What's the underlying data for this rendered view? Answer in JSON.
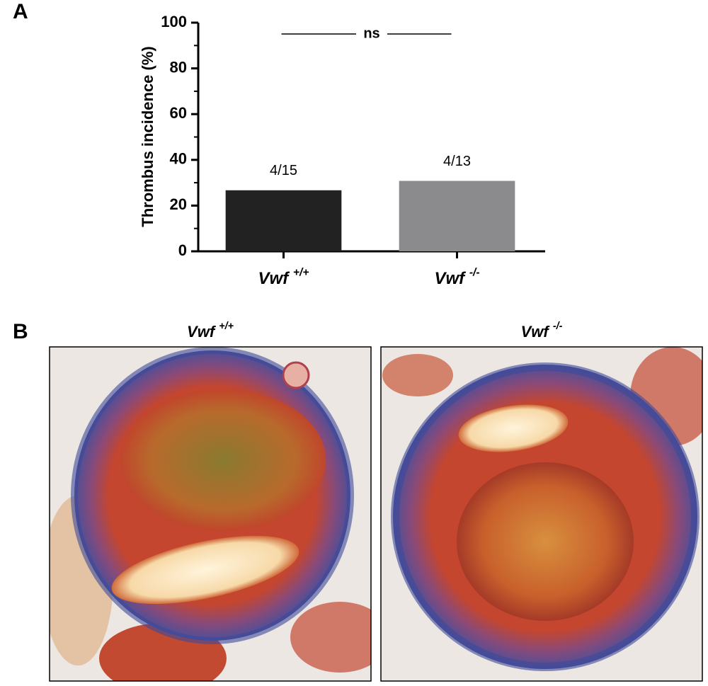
{
  "panel_labels": [
    "A",
    "B"
  ],
  "chart_data": {
    "type": "bar",
    "y_label": "Thrombus incidence (%)",
    "categories": [
      "Vwf +/+",
      "Vwf -/-"
    ],
    "series": [
      {
        "name": null,
        "colors": [
          "#222222",
          "#8b8b8e"
        ],
        "values": [
          26.7,
          30.8
        ],
        "value_labels": [
          "4/15",
          "4/13"
        ]
      }
    ],
    "ylim": [
      0,
      100
    ],
    "yticks": [
      0,
      20,
      40,
      60,
      80,
      100
    ],
    "grid": false,
    "annotation": "ns"
  },
  "panel_b": {
    "titles": [
      "Vwf +/+",
      "Vwf -/-"
    ]
  }
}
